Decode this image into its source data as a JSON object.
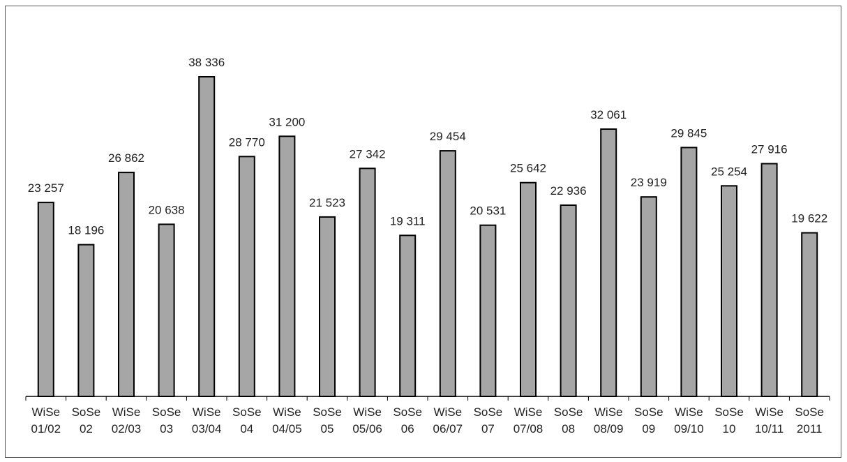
{
  "colors": {
    "bar_fill": "#a6a6a6",
    "bar_stroke": "#000000",
    "axis": "#000000",
    "border": "#555555",
    "text": "#222222"
  },
  "chart_data": {
    "type": "bar",
    "title": "",
    "xlabel": "",
    "ylabel": "",
    "ylim": [
      0,
      40000
    ],
    "grid": false,
    "legend": "none",
    "categories": [
      [
        "WiSe",
        "01/02"
      ],
      [
        "SoSe",
        "02"
      ],
      [
        "WiSe",
        "02/03"
      ],
      [
        "SoSe",
        "03"
      ],
      [
        "WiSe",
        "03/04"
      ],
      [
        "SoSe",
        "04"
      ],
      [
        "WiSe",
        "04/05"
      ],
      [
        "SoSe",
        "05"
      ],
      [
        "WiSe",
        "05/06"
      ],
      [
        "SoSe",
        "06"
      ],
      [
        "WiSe",
        "06/07"
      ],
      [
        "SoSe",
        "07"
      ],
      [
        "WiSe",
        "07/08"
      ],
      [
        "SoSe",
        "08"
      ],
      [
        "WiSe",
        "08/09"
      ],
      [
        "SoSe",
        "09"
      ],
      [
        "WiSe",
        "09/10"
      ],
      [
        "SoSe",
        "10"
      ],
      [
        "WiSe",
        "10/11"
      ],
      [
        "SoSe",
        "2011"
      ]
    ],
    "values": [
      23257,
      18196,
      26862,
      20638,
      38336,
      28770,
      31200,
      21523,
      27342,
      19311,
      29454,
      20531,
      25642,
      22936,
      32061,
      23919,
      29845,
      25254,
      27916,
      19622
    ],
    "value_labels": [
      "23 257",
      "18 196",
      "26 862",
      "20 638",
      "38 336",
      "28 770",
      "31 200",
      "21 523",
      "27 342",
      "19 311",
      "29 454",
      "20 531",
      "25 642",
      "22 936",
      "32 061",
      "23 919",
      "29 845",
      "25 254",
      "27 916",
      "19 622"
    ]
  }
}
